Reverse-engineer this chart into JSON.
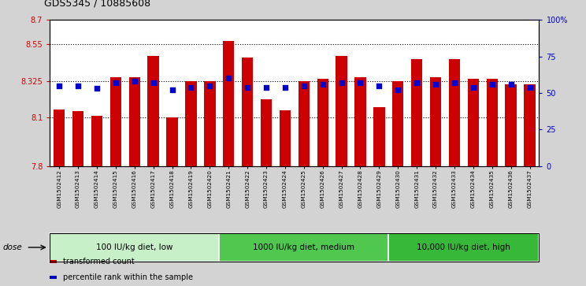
{
  "title": "GDS5345 / 10885608",
  "samples": [
    "GSM1502412",
    "GSM1502413",
    "GSM1502414",
    "GSM1502415",
    "GSM1502416",
    "GSM1502417",
    "GSM1502418",
    "GSM1502419",
    "GSM1502420",
    "GSM1502421",
    "GSM1502422",
    "GSM1502423",
    "GSM1502424",
    "GSM1502425",
    "GSM1502426",
    "GSM1502427",
    "GSM1502428",
    "GSM1502429",
    "GSM1502430",
    "GSM1502431",
    "GSM1502432",
    "GSM1502433",
    "GSM1502434",
    "GSM1502435",
    "GSM1502436",
    "GSM1502437"
  ],
  "bar_values": [
    8.15,
    8.14,
    8.11,
    8.345,
    8.345,
    8.48,
    8.1,
    8.325,
    8.325,
    8.57,
    8.47,
    8.21,
    8.145,
    8.325,
    8.335,
    8.48,
    8.345,
    8.16,
    8.325,
    8.46,
    8.345,
    8.46,
    8.335,
    8.335,
    8.305,
    8.305
  ],
  "percentile_values": [
    55,
    55,
    53,
    57,
    58,
    57,
    52,
    54,
    55,
    60,
    54,
    54,
    54,
    55,
    56,
    57,
    57,
    55,
    52,
    57,
    56,
    57,
    54,
    56,
    56,
    54
  ],
  "bar_color": "#cc0000",
  "percentile_color": "#0000cc",
  "y_min": 7.8,
  "y_max": 8.7,
  "y_ticks": [
    7.8,
    8.1,
    8.325,
    8.55,
    8.7
  ],
  "y_tick_labels": [
    "7.8",
    "8.1",
    "8.325",
    "8.55",
    "8.7"
  ],
  "y2_ticks": [
    0,
    25,
    50,
    75,
    100
  ],
  "y2_tick_labels": [
    "0",
    "25",
    "50",
    "75",
    "100%"
  ],
  "gridlines": [
    8.1,
    8.325,
    8.55
  ],
  "groups": [
    {
      "label": "100 IU/kg diet, low",
      "start": 0,
      "end": 8,
      "color": "#c8f0c8"
    },
    {
      "label": "1000 IU/kg diet, medium",
      "start": 9,
      "end": 17,
      "color": "#50c850"
    },
    {
      "label": "10,000 IU/kg diet, high",
      "start": 18,
      "end": 25,
      "color": "#38b838"
    }
  ],
  "legend_items": [
    {
      "label": "transformed count",
      "color": "#cc0000"
    },
    {
      "label": "percentile rank within the sample",
      "color": "#0000cc"
    }
  ],
  "dose_label": "dose",
  "bg_color": "#d3d3d3",
  "plot_bg_color": "#ffffff",
  "xtick_bg_color": "#d3d3d3"
}
